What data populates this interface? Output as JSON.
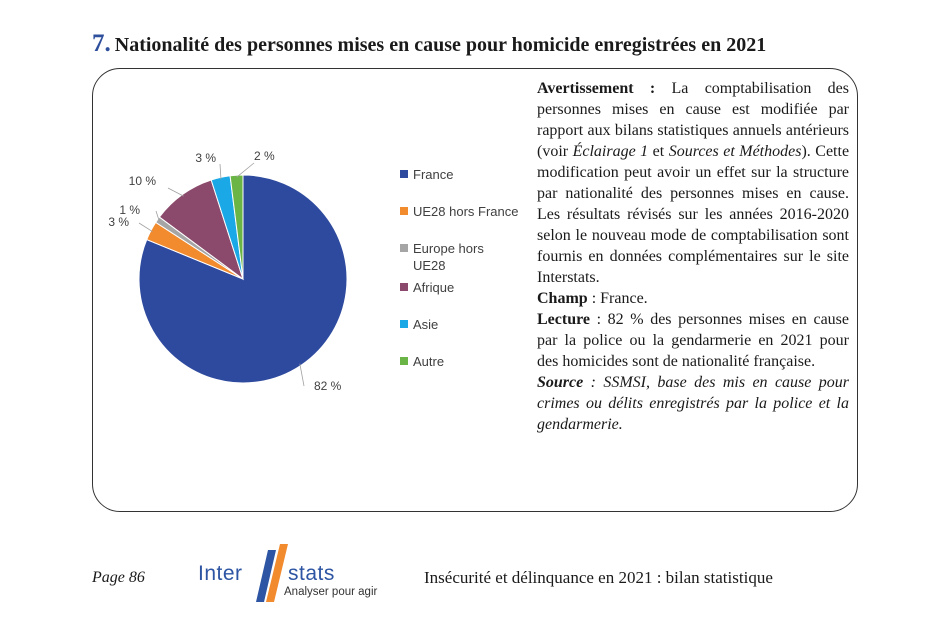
{
  "header": {
    "number": "7.",
    "title": "Nationalité des personnes mises en cause pour homicide enregistrées en 2021"
  },
  "chart_data": {
    "type": "pie",
    "slices": [
      {
        "name": "France",
        "value": 82,
        "label": "82 %",
        "color": "#2e4a9e"
      },
      {
        "name": "UE28 hors France",
        "value": 3,
        "label": "3 %",
        "color": "#f28a2e"
      },
      {
        "name": "Europe hors UE28",
        "value": 1,
        "label": "1 %",
        "color": "#a5a5a5"
      },
      {
        "name": "Afrique",
        "value": 10,
        "label": "10 %",
        "color": "#8b4a6b"
      },
      {
        "name": "Asie",
        "value": 3,
        "label": "3 %",
        "color": "#1aa9e6"
      },
      {
        "name": "Autre",
        "value": 2,
        "label": "2 %",
        "color": "#6ab545"
      }
    ],
    "legend_position": "right"
  },
  "notes": {
    "warning_label": "Avertissement :",
    "warning_text_1": " La comptabilisation des personnes mises en cause est modifiée par rapport aux bilans statistiques annuels antérieurs (voir ",
    "warning_ref_1": "Éclairage 1",
    "warning_text_2": " et ",
    "warning_ref_2": "Sources et Méthodes",
    "warning_text_3": "). Cette modification peut avoir un effet sur la structure par nationalité des personnes mises en cause. Les résultats révisés sur les années 2016-2020 selon le nouveau mode de comptabilisation sont fournis en données complémentaires sur le site Interstats.",
    "champ_label": "Champ",
    "champ_text": " : France.",
    "lecture_label": "Lecture",
    "lecture_text": " : 82 % des personnes mises en cause par la police ou la gendarmerie en 2021 pour des homicides sont de nationalité française.",
    "source_label": "Source",
    "source_text": " : SSMSI, base des mis en cause pour crimes ou délits enregistrés par la police et la gendarmerie."
  },
  "footer": {
    "page": "Page 86",
    "logo_inter": "Inter",
    "logo_stats": "stats",
    "logo_tagline": "Analyser pour agir",
    "publication": "Insécurité et délinquance en 2021 : bilan statistique"
  }
}
